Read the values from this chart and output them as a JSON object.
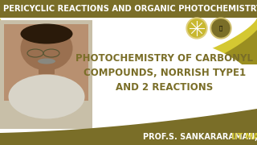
{
  "bg_color": "#f0ece0",
  "header_bg": "#7a6e28",
  "header_text": "PERICYCLIC REACTIONS AND ORGANIC PHOTOCHEMISTRY",
  "header_text_color": "#ffffff",
  "header_fontsize": 7.2,
  "wave_color_light": "#d4c832",
  "wave_color_dark": "#9a8e20",
  "title_line1": "PHOTOCHEMISTRY OF CARBONYL",
  "title_line2": "COMPOUNDS, NORRISH TYPE1",
  "title_line3": "AND 2 REACTIONS",
  "title_color": "#7a6e28",
  "title_fontsize": 8.5,
  "bottom_bar_color": "#7a6e28",
  "prof_bold": "PROF.S. SANKARARAMAN,",
  "prof_light": " IIT MADRAS",
  "prof_bold_color": "#ffffff",
  "prof_light_color": "#d4c832",
  "prof_fontsize": 7.0,
  "photo_bg": "#c8bfa8",
  "face_color": "#a07850",
  "shirt_color": "#d8d0c0",
  "content_bg": "#ffffff"
}
